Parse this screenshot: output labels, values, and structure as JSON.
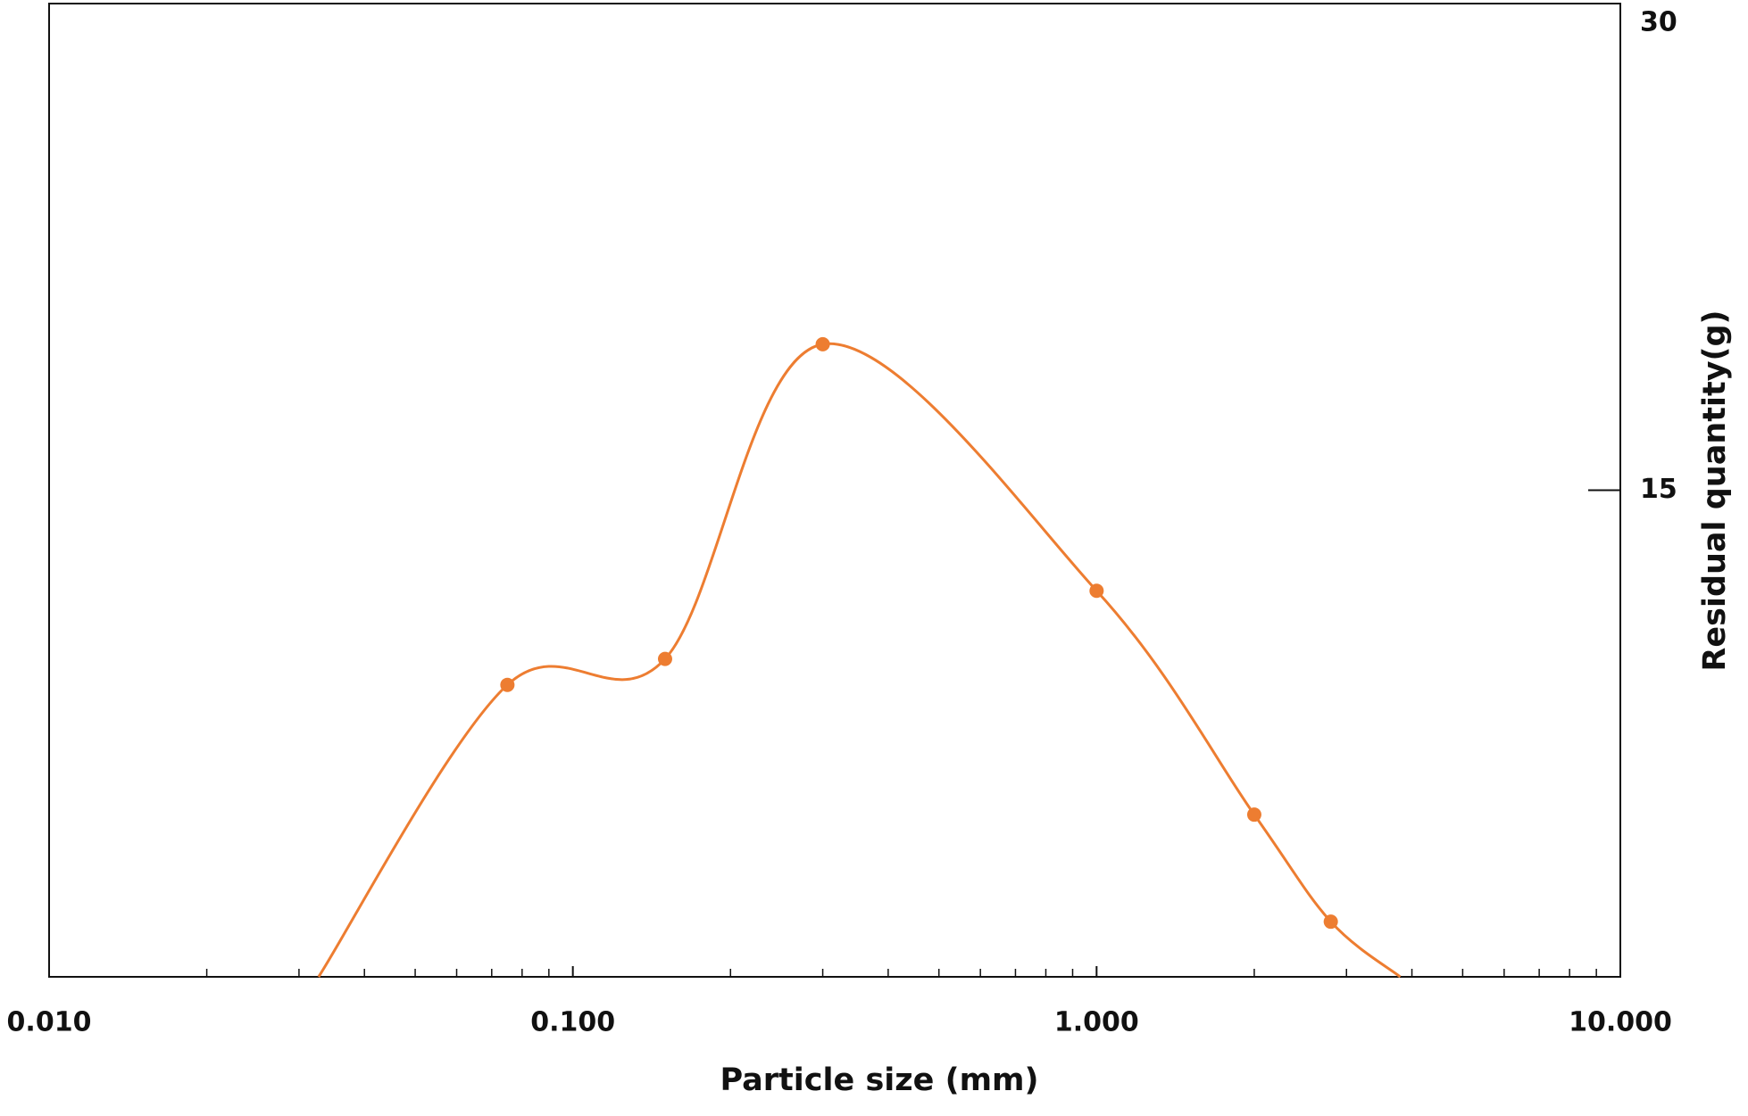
{
  "chart_data": {
    "type": "line",
    "x_label": "Particle size (mm)",
    "y_label": "Residual quantity(g)",
    "x": [
      0.0327,
      0.075,
      0.15,
      0.3,
      1.0,
      2.0,
      2.8,
      3.8
    ],
    "series": [
      {
        "color": "#ed7d31",
        "values": [
          0,
          9,
          9.8,
          19.5,
          11.9,
          5,
          1.7,
          0
        ],
        "markers": [
          false,
          true,
          true,
          true,
          true,
          true,
          true,
          false
        ]
      }
    ],
    "xscale": "log",
    "xlim": [
      0.01,
      10
    ],
    "xticks": [
      {
        "value": 0.01,
        "label": "0.010"
      },
      {
        "value": 0.1,
        "label": "0.100"
      },
      {
        "value": 1,
        "label": "1.000"
      },
      {
        "value": 10,
        "label": "10.000"
      }
    ],
    "xminorticks": [
      0.02,
      0.03,
      0.04,
      0.05,
      0.06,
      0.07,
      0.08,
      0.09,
      0.2,
      0.3,
      0.4,
      0.5,
      0.6,
      0.7,
      0.8,
      0.9,
      2,
      3,
      4,
      5,
      6,
      7,
      8,
      9
    ],
    "y_axis_side": "right",
    "ylim": [
      0,
      30
    ],
    "yticks": [
      15,
      30
    ]
  }
}
